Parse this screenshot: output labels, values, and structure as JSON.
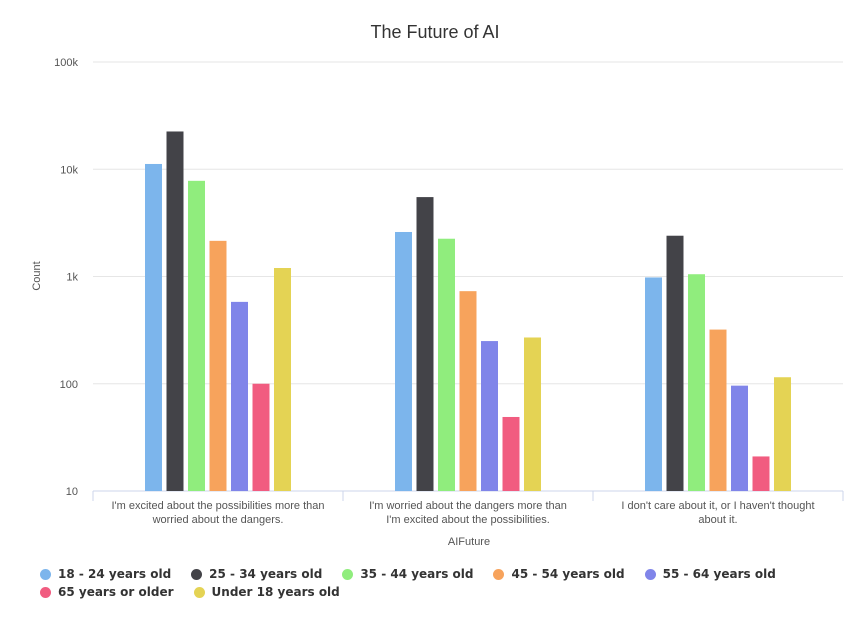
{
  "chart_data": {
    "type": "bar",
    "title": "The Future of AI",
    "xlabel": "AIFuture",
    "ylabel": "Count",
    "yscale": "log",
    "ylim": [
      10,
      100000
    ],
    "yticks": [
      {
        "value": 10,
        "label": "10"
      },
      {
        "value": 100,
        "label": "100"
      },
      {
        "value": 1000,
        "label": "1k"
      },
      {
        "value": 10000,
        "label": "10k"
      },
      {
        "value": 100000,
        "label": "100k"
      }
    ],
    "grid": true,
    "legend_position": "bottom",
    "categories": [
      "I'm excited about the possibilities more than worried about the dangers.",
      "I'm worried about the dangers more than I'm excited about the possibilities.",
      "I don't care about it, or I haven't thought about it."
    ],
    "category_lines": [
      [
        "I'm excited about the possibilities more than",
        "worried about the dangers."
      ],
      [
        "I'm worried about the dangers more than",
        "I'm excited about the possibilities."
      ],
      [
        "I don't care about it, or I haven't thought",
        "about it."
      ]
    ],
    "series": [
      {
        "name": "18 - 24 years old",
        "color": "#7cb5ec",
        "values": [
          11200,
          2600,
          980
        ]
      },
      {
        "name": "25 - 34 years old",
        "color": "#434348",
        "values": [
          22500,
          5500,
          2400
        ]
      },
      {
        "name": "35 - 44 years old",
        "color": "#90ed7d",
        "values": [
          7800,
          2250,
          1050
        ]
      },
      {
        "name": "45 - 54 years old",
        "color": "#f7a35c",
        "values": [
          2150,
          730,
          320
        ]
      },
      {
        "name": "55 - 64 years old",
        "color": "#8085e9",
        "values": [
          580,
          250,
          96
        ]
      },
      {
        "name": "65 years or older",
        "color": "#f15c80",
        "values": [
          100,
          49,
          21
        ]
      },
      {
        "name": "Under 18 years old",
        "color": "#e4d354",
        "values": [
          1200,
          270,
          115
        ]
      }
    ]
  }
}
